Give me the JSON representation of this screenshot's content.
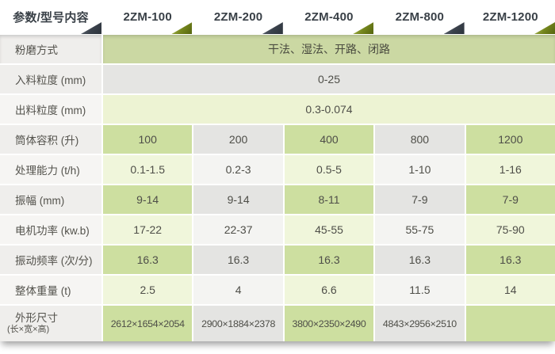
{
  "chart_data": {
    "type": "table",
    "title": "2ZM series vibration mill specifications",
    "columns": [
      "参数/型号内容",
      "2ZM-100",
      "2ZM-200",
      "2ZM-400",
      "2ZM-800",
      "2ZM-1200"
    ],
    "rows": [
      {
        "label": "粉磨方式",
        "span": "干法、湿法、开路、闭路"
      },
      {
        "label": "入料粒度 (mm)",
        "span": "0-25"
      },
      {
        "label": "出料粒度 (mm)",
        "span": "0.3-0.074"
      },
      {
        "label": "筒体容积 (升)",
        "values": [
          "100",
          "200",
          "400",
          "800",
          "1200"
        ]
      },
      {
        "label": "处理能力 (t/h)",
        "values": [
          "0.1-1.5",
          "0.2-3",
          "0.5-5",
          "1-10",
          "1-16"
        ]
      },
      {
        "label": "振幅 (mm)",
        "values": [
          "9-14",
          "9-14",
          "8-11",
          "7-9",
          "7-9"
        ]
      },
      {
        "label": "电机功率 (kw.b)",
        "values": [
          "17-22",
          "22-37",
          "45-55",
          "55-75",
          "75-90"
        ]
      },
      {
        "label": "振动频率 (次/分)",
        "values": [
          "16.3",
          "16.3",
          "16.3",
          "16.3",
          "16.3"
        ]
      },
      {
        "label": "整体重量 (t)",
        "values": [
          "2.5",
          "4",
          "6.6",
          "11.5",
          "14"
        ]
      },
      {
        "label": "外形尺寸",
        "sublabel": "(长×宽×高)",
        "values": [
          "2612×1654×2054",
          "2900×1884×2378",
          "3800×2350×2490",
          "4843×2956×2510",
          ""
        ]
      }
    ]
  },
  "colors": {
    "column_green_dark": "#cddfa0",
    "column_green_light": "#f0f6db",
    "column_gray_dark": "#e4e4e2",
    "column_gray_light": "#f4f4f2",
    "span_green": "#cbd8a3",
    "triangle_olive": "#74851d",
    "triangle_slate": "#3a414b",
    "header_text": "#394047"
  }
}
